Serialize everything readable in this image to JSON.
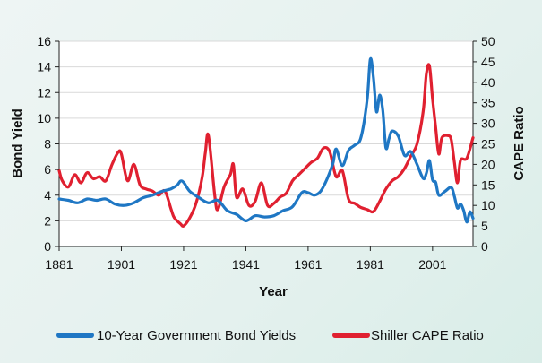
{
  "chart_data": {
    "type": "line",
    "title": "",
    "xlabel": "Year",
    "ylabel_left": "Bond Yield",
    "ylabel_right": "CAPE Ratio",
    "xlim": [
      1881,
      2014
    ],
    "ylim_left": [
      0,
      16
    ],
    "ylim_right": [
      0,
      50
    ],
    "x_ticks": [
      1881,
      1901,
      1921,
      1941,
      1961,
      1981,
      2001
    ],
    "y_ticks_left": [
      0,
      2,
      4,
      6,
      8,
      10,
      12,
      14,
      16
    ],
    "y_ticks_right": [
      0,
      5,
      10,
      15,
      20,
      25,
      30,
      35,
      40,
      45,
      50
    ],
    "grid": "horizontal",
    "legend_position": "bottom",
    "series": [
      {
        "name": "10-Year Government Bond Yields",
        "axis": "left",
        "color": "#1f77c4",
        "x": [
          1881,
          1884,
          1887,
          1890,
          1893,
          1896,
          1899,
          1902,
          1905,
          1908,
          1911,
          1914,
          1917,
          1919,
          1920,
          1921,
          1923,
          1926,
          1929,
          1932,
          1935,
          1938,
          1941,
          1944,
          1947,
          1950,
          1953,
          1956,
          1959,
          1961,
          1963,
          1965,
          1967,
          1969,
          1970,
          1972,
          1974,
          1976,
          1978,
          1980,
          1981,
          1982,
          1983,
          1984,
          1985,
          1986,
          1987,
          1988,
          1990,
          1992,
          1994,
          1996,
          1998,
          1999,
          2000,
          2001,
          2002,
          2003,
          2005,
          2007,
          2008,
          2009,
          2010,
          2011,
          2012,
          2013,
          2014
        ],
        "y": [
          3.7,
          3.6,
          3.4,
          3.7,
          3.6,
          3.7,
          3.3,
          3.2,
          3.4,
          3.8,
          4.0,
          4.3,
          4.5,
          4.8,
          5.1,
          5.0,
          4.3,
          3.8,
          3.4,
          3.6,
          2.8,
          2.5,
          2.0,
          2.4,
          2.3,
          2.4,
          2.8,
          3.1,
          4.2,
          4.2,
          4.0,
          4.3,
          5.2,
          6.5,
          7.6,
          6.3,
          7.5,
          7.9,
          8.5,
          11.5,
          14.6,
          13.2,
          10.5,
          11.8,
          10.6,
          7.7,
          8.4,
          9.0,
          8.6,
          7.1,
          7.4,
          6.4,
          5.3,
          5.7,
          6.7,
          5.2,
          5.0,
          4.0,
          4.3,
          4.6,
          3.9,
          3.0,
          3.3,
          2.8,
          1.9,
          2.7,
          2.2
        ]
      },
      {
        "name": "Shiller CAPE Ratio",
        "axis": "right",
        "color": "#e02030",
        "x": [
          1881,
          1882,
          1884,
          1886,
          1888,
          1890,
          1892,
          1894,
          1896,
          1898,
          1900,
          1901,
          1903,
          1905,
          1907,
          1909,
          1911,
          1913,
          1915,
          1917,
          1918,
          1920,
          1921,
          1923,
          1925,
          1927,
          1928,
          1929,
          1931,
          1932,
          1934,
          1936,
          1937,
          1938,
          1940,
          1942,
          1944,
          1946,
          1948,
          1950,
          1952,
          1954,
          1956,
          1958,
          1960,
          1962,
          1964,
          1966,
          1968,
          1970,
          1972,
          1974,
          1976,
          1978,
          1980,
          1982,
          1984,
          1986,
          1988,
          1990,
          1992,
          1994,
          1996,
          1998,
          1999,
          2000,
          2001,
          2002,
          2003,
          2004,
          2006,
          2007,
          2008,
          2009,
          2010,
          2012,
          2014
        ],
        "y": [
          18.5,
          16.0,
          14.5,
          17.5,
          15.5,
          18.0,
          16.5,
          17.0,
          16.0,
          20.0,
          23.0,
          22.5,
          16.0,
          20.0,
          15.0,
          14.0,
          13.5,
          12.5,
          13.5,
          9.0,
          7.0,
          5.5,
          5.0,
          7.0,
          10.5,
          17.0,
          23.0,
          27.0,
          12.5,
          9.0,
          14.5,
          17.5,
          20.0,
          12.0,
          14.0,
          10.0,
          11.0,
          15.5,
          10.0,
          10.5,
          12.0,
          13.0,
          16.0,
          17.5,
          19.0,
          20.5,
          21.5,
          24.0,
          23.0,
          17.0,
          18.5,
          11.5,
          10.5,
          9.5,
          9.0,
          8.5,
          11.0,
          14.0,
          16.0,
          17.0,
          19.0,
          22.0,
          25.0,
          33.0,
          42.0,
          44.0,
          36.0,
          29.0,
          22.5,
          26.5,
          27.0,
          26.0,
          20.5,
          15.5,
          21.0,
          21.5,
          26.5
        ]
      }
    ]
  }
}
